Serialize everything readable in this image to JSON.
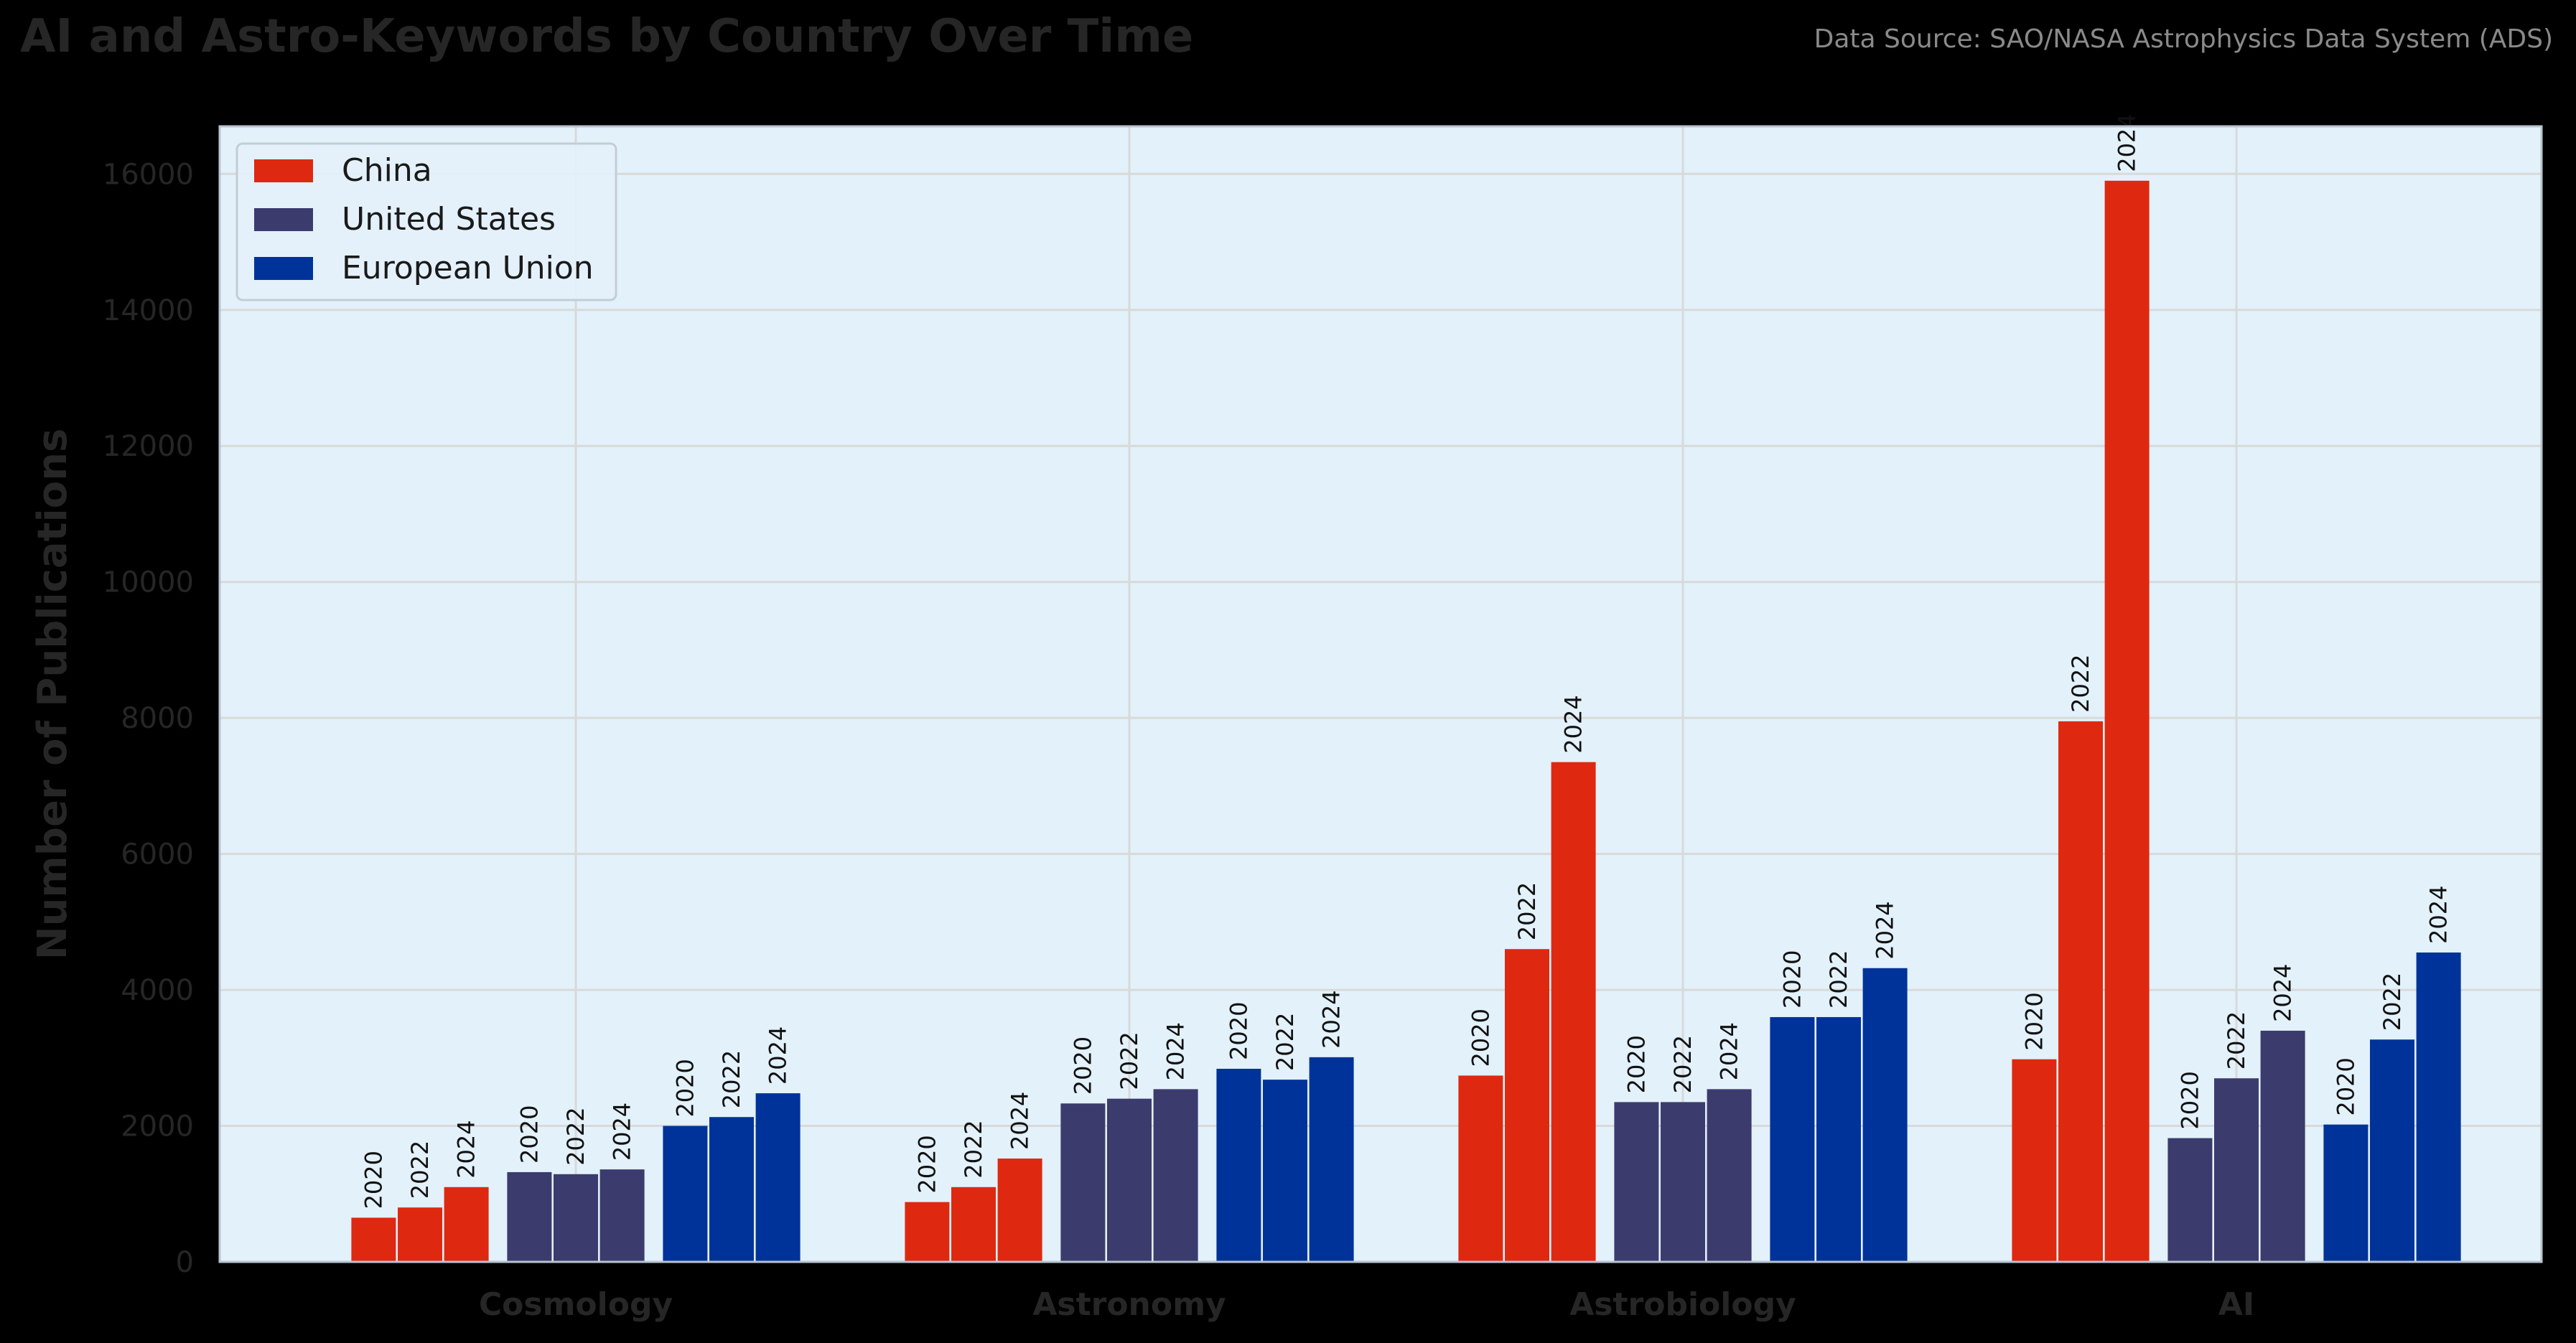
{
  "header": {
    "title": "AI and Astro-Keywords by Country Over Time",
    "subtitle": "Data Source: SAO/NASA Astrophysics Data System (ADS)"
  },
  "colors": {
    "background": "#000000",
    "plot_background": "#e3f1fb",
    "grid": "#d9d9d9",
    "China": "#de2910",
    "United States": "#3c3b6e",
    "European Union": "#003399"
  },
  "chart_data": {
    "type": "bar",
    "title": "AI and Astro-Keywords by Country Over Time",
    "subtitle": "Data Source: SAO/NASA Astrophysics Data System (ADS)",
    "xlabel": "",
    "ylabel": "Number of Publications",
    "categories": [
      "Cosmology",
      "Astronomy",
      "Astrobiology",
      "AI"
    ],
    "years": [
      "2020",
      "2022",
      "2024"
    ],
    "ylim": [
      0,
      16700
    ],
    "yticks": [
      0,
      2000,
      4000,
      6000,
      8000,
      10000,
      12000,
      14000,
      16000
    ],
    "grid": true,
    "legend_position": "top-left",
    "series": [
      {
        "name": "China",
        "values": {
          "Cosmology": [
            650,
            800,
            1100
          ],
          "Astronomy": [
            880,
            1100,
            1520
          ],
          "Astrobiology": [
            2740,
            4600,
            7350
          ],
          "AI": [
            2980,
            7950,
            15900
          ]
        }
      },
      {
        "name": "United States",
        "values": {
          "Cosmology": [
            1320,
            1290,
            1360
          ],
          "Astronomy": [
            2330,
            2400,
            2540
          ],
          "Astrobiology": [
            2350,
            2350,
            2540
          ],
          "AI": [
            1820,
            2700,
            3400
          ]
        }
      },
      {
        "name": "European Union",
        "values": {
          "Cosmology": [
            2000,
            2130,
            2480
          ],
          "Astronomy": [
            2840,
            2680,
            3010
          ],
          "Astrobiology": [
            3600,
            3600,
            4320
          ],
          "AI": [
            2020,
            3270,
            4550
          ]
        }
      }
    ]
  }
}
